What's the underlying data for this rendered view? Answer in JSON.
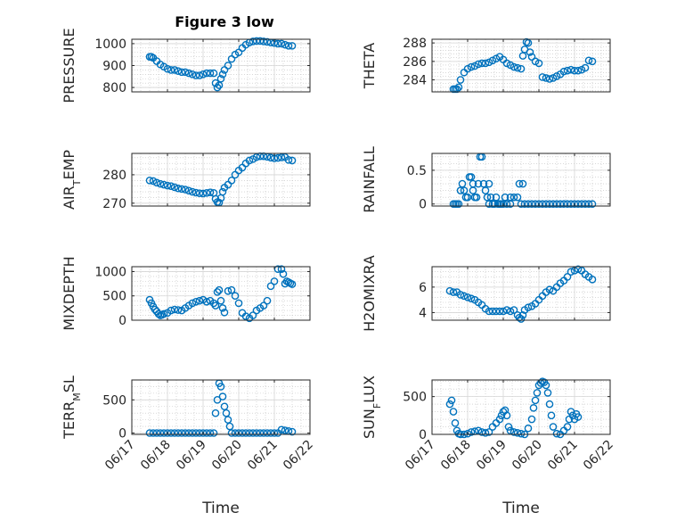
{
  "figure_title": "Figure 3 low",
  "colors": {
    "marker": "#0072BD",
    "axis": "#262626",
    "grid": "#C0C0C0",
    "background": "#ffffff"
  },
  "chart_data": [
    {
      "type": "scatter",
      "marker": "open-circle",
      "grid": true,
      "title": "Figure 3 low",
      "ylabel": "PRESSURE",
      "xlabel": "",
      "xlim": [
        0,
        5
      ],
      "ylim": [
        780,
        1020
      ],
      "yticks": [
        800,
        900,
        1000
      ],
      "xticks": [
        0,
        1,
        2,
        3,
        4,
        5
      ],
      "xtick_labels": [
        "06/17",
        "06/18",
        "06/19",
        "06/20",
        "06/21",
        "06/22"
      ],
      "show_xtick_labels": false,
      "x": [
        0.5,
        0.55,
        0.6,
        0.7,
        0.8,
        0.9,
        1.0,
        1.1,
        1.2,
        1.3,
        1.4,
        1.5,
        1.6,
        1.7,
        1.8,
        1.9,
        2.0,
        2.1,
        2.2,
        2.3,
        2.35,
        2.4,
        2.45,
        2.5,
        2.55,
        2.6,
        2.7,
        2.8,
        2.9,
        3.0,
        3.1,
        3.2,
        3.3,
        3.4,
        3.5,
        3.6,
        3.7,
        3.8,
        3.9,
        4.0,
        4.1,
        4.2,
        4.3,
        4.4,
        4.5
      ],
      "y": [
        940,
        940,
        935,
        920,
        905,
        895,
        885,
        880,
        880,
        875,
        870,
        870,
        865,
        860,
        855,
        855,
        860,
        865,
        865,
        865,
        820,
        800,
        810,
        840,
        860,
        880,
        900,
        930,
        950,
        960,
        980,
        995,
        1005,
        1010,
        1012,
        1012,
        1010,
        1008,
        1005,
        1003,
        1000,
        1000,
        995,
        990,
        990
      ]
    },
    {
      "type": "scatter",
      "marker": "open-circle",
      "grid": true,
      "ylabel": "THETA",
      "xlabel": "",
      "xlim": [
        0,
        5
      ],
      "ylim": [
        282.7,
        288.4
      ],
      "yticks": [
        284,
        286,
        288
      ],
      "xticks": [
        0,
        1,
        2,
        3,
        4,
        5
      ],
      "xtick_labels": [
        "06/17",
        "06/18",
        "06/19",
        "06/20",
        "06/21",
        "06/22"
      ],
      "show_xtick_labels": false,
      "x": [
        0.6,
        0.65,
        0.7,
        0.75,
        0.8,
        0.9,
        1.0,
        1.1,
        1.2,
        1.3,
        1.4,
        1.5,
        1.6,
        1.7,
        1.8,
        1.9,
        2.0,
        2.1,
        2.2,
        2.3,
        2.4,
        2.5,
        2.55,
        2.6,
        2.65,
        2.7,
        2.75,
        2.8,
        2.9,
        3.0,
        3.1,
        3.2,
        3.3,
        3.4,
        3.5,
        3.6,
        3.7,
        3.8,
        3.9,
        4.0,
        4.1,
        4.2,
        4.3,
        4.4,
        4.5
      ],
      "y": [
        283.0,
        283.0,
        283.0,
        283.2,
        284.0,
        284.8,
        285.2,
        285.4,
        285.5,
        285.7,
        285.8,
        285.8,
        285.9,
        286.1,
        286.3,
        286.5,
        286.2,
        285.8,
        285.6,
        285.4,
        285.3,
        285.2,
        286.6,
        287.3,
        288.1,
        288.0,
        287.0,
        286.5,
        286.0,
        285.8,
        284.3,
        284.2,
        284.1,
        284.2,
        284.4,
        284.6,
        284.9,
        285.0,
        285.1,
        285.0,
        285.0,
        285.1,
        285.3,
        286.1,
        286.0
      ]
    },
    {
      "type": "scatter",
      "marker": "open-circle",
      "grid": true,
      "ylabel": "AIR_TEMP",
      "xlabel": "",
      "xlim": [
        0,
        5
      ],
      "ylim": [
        269,
        287.5
      ],
      "yticks": [
        270,
        280
      ],
      "xticks": [
        0,
        1,
        2,
        3,
        4,
        5
      ],
      "xtick_labels": [
        "06/17",
        "06/18",
        "06/19",
        "06/20",
        "06/21",
        "06/22"
      ],
      "show_xtick_labels": false,
      "x": [
        0.5,
        0.6,
        0.7,
        0.8,
        0.9,
        1.0,
        1.1,
        1.2,
        1.3,
        1.4,
        1.5,
        1.6,
        1.7,
        1.8,
        1.9,
        2.0,
        2.1,
        2.2,
        2.3,
        2.35,
        2.4,
        2.45,
        2.5,
        2.55,
        2.6,
        2.7,
        2.8,
        2.9,
        3.0,
        3.1,
        3.2,
        3.3,
        3.4,
        3.5,
        3.6,
        3.7,
        3.8,
        3.9,
        4.0,
        4.1,
        4.2,
        4.3,
        4.4,
        4.5
      ],
      "y": [
        278.0,
        277.8,
        277.2,
        276.8,
        276.5,
        276.2,
        276.0,
        275.6,
        275.2,
        275.0,
        274.8,
        274.4,
        274.0,
        273.7,
        273.5,
        273.4,
        273.6,
        273.8,
        273.6,
        271.5,
        270.4,
        270.2,
        271.8,
        274.0,
        275.5,
        276.5,
        278.0,
        280.0,
        281.5,
        282.5,
        284.0,
        285.0,
        285.5,
        286.2,
        286.5,
        286.5,
        286.3,
        286.0,
        285.8,
        285.9,
        286.1,
        286.2,
        285.2,
        285.0
      ]
    },
    {
      "type": "scatter",
      "marker": "open-circle",
      "grid": true,
      "ylabel": "RAINFALL",
      "xlabel": "",
      "xlim": [
        0,
        5
      ],
      "ylim": [
        -0.03,
        0.75
      ],
      "yticks": [
        0,
        0.5
      ],
      "xticks": [
        0,
        1,
        2,
        3,
        4,
        5
      ],
      "xtick_labels": [
        "06/17",
        "06/18",
        "06/19",
        "06/20",
        "06/21",
        "06/22"
      ],
      "show_xtick_labels": false,
      "x": [
        0.6,
        0.65,
        0.7,
        0.75,
        0.8,
        0.85,
        0.9,
        0.95,
        1.0,
        1.05,
        1.1,
        1.15,
        1.2,
        1.25,
        1.3,
        1.35,
        1.4,
        1.45,
        1.5,
        1.55,
        1.6,
        1.65,
        1.7,
        1.75,
        1.8,
        1.85,
        1.9,
        1.95,
        2.0,
        2.05,
        2.1,
        2.2,
        2.3,
        2.4,
        2.5,
        2.6,
        2.7,
        2.8,
        2.9,
        3.0,
        3.1,
        3.2,
        3.3,
        3.4,
        3.5,
        3.6,
        3.7,
        3.8,
        3.9,
        4.0,
        4.1,
        4.2,
        4.3,
        4.4,
        4.5,
        1.9,
        2.2,
        2.45,
        2.55,
        1.15,
        1.6
      ],
      "y": [
        0,
        0,
        0,
        0,
        0.2,
        0.3,
        0.2,
        0.1,
        0.1,
        0.4,
        0.4,
        0.2,
        0.1,
        0.1,
        0.3,
        0.7,
        0.7,
        0.3,
        0.2,
        0.1,
        0,
        0.1,
        0,
        0,
        0.1,
        0,
        0,
        0,
        0,
        0.1,
        0,
        0.1,
        0.1,
        0.1,
        0,
        0,
        0,
        0,
        0,
        0,
        0,
        0,
        0,
        0,
        0,
        0,
        0,
        0,
        0,
        0,
        0,
        0,
        0,
        0,
        0,
        0,
        0,
        0.3,
        0.3,
        0.3,
        0.3
      ]
    },
    {
      "type": "scatter",
      "marker": "open-circle",
      "grid": true,
      "ylabel": "MIXDEPTH",
      "xlabel": "",
      "xlim": [
        0,
        5
      ],
      "ylim": [
        0,
        1100
      ],
      "yticks": [
        0,
        500,
        1000
      ],
      "xticks": [
        0,
        1,
        2,
        3,
        4,
        5
      ],
      "xtick_labels": [
        "06/17",
        "06/18",
        "06/19",
        "06/20",
        "06/21",
        "06/22"
      ],
      "show_xtick_labels": false,
      "x": [
        0.5,
        0.55,
        0.6,
        0.65,
        0.7,
        0.75,
        0.8,
        0.85,
        0.9,
        1.0,
        1.1,
        1.2,
        1.3,
        1.4,
        1.5,
        1.6,
        1.7,
        1.8,
        1.9,
        2.0,
        2.1,
        2.2,
        2.3,
        2.35,
        2.4,
        2.45,
        2.5,
        2.55,
        2.6,
        2.7,
        2.8,
        2.9,
        3.0,
        3.1,
        3.2,
        3.3,
        3.4,
        3.5,
        3.6,
        3.7,
        3.8,
        3.9,
        4.0,
        4.1,
        4.2,
        4.25,
        4.3,
        4.35,
        4.4,
        4.45,
        4.5
      ],
      "y": [
        420,
        350,
        280,
        220,
        180,
        130,
        100,
        110,
        130,
        150,
        200,
        220,
        210,
        200,
        250,
        300,
        350,
        380,
        400,
        420,
        380,
        400,
        350,
        300,
        580,
        620,
        400,
        250,
        160,
        600,
        620,
        500,
        350,
        150,
        80,
        40,
        100,
        200,
        250,
        300,
        400,
        700,
        800,
        1050,
        1050,
        950,
        750,
        800,
        780,
        760,
        740
      ]
    },
    {
      "type": "scatter",
      "marker": "open-circle",
      "grid": true,
      "ylabel": "H2OMIXRA",
      "xlabel": "",
      "xlim": [
        0,
        5
      ],
      "ylim": [
        3.4,
        7.6
      ],
      "yticks": [
        4,
        6
      ],
      "xticks": [
        0,
        1,
        2,
        3,
        4,
        5
      ],
      "xtick_labels": [
        "06/17",
        "06/18",
        "06/19",
        "06/20",
        "06/21",
        "06/22"
      ],
      "show_xtick_labels": false,
      "x": [
        0.5,
        0.6,
        0.7,
        0.8,
        0.9,
        1.0,
        1.1,
        1.2,
        1.3,
        1.4,
        1.5,
        1.6,
        1.7,
        1.8,
        1.9,
        2.0,
        2.1,
        2.2,
        2.3,
        2.4,
        2.45,
        2.5,
        2.55,
        2.6,
        2.7,
        2.8,
        2.9,
        3.0,
        3.1,
        3.2,
        3.3,
        3.4,
        3.5,
        3.6,
        3.7,
        3.8,
        3.9,
        4.0,
        4.1,
        4.2,
        4.3,
        4.4,
        4.5
      ],
      "y": [
        5.7,
        5.6,
        5.6,
        5.4,
        5.3,
        5.2,
        5.1,
        5.0,
        4.8,
        4.6,
        4.3,
        4.1,
        4.1,
        4.1,
        4.1,
        4.1,
        4.2,
        4.1,
        4.2,
        3.8,
        3.6,
        3.5,
        3.8,
        4.2,
        4.4,
        4.5,
        4.7,
        5.0,
        5.3,
        5.6,
        5.8,
        5.7,
        6.0,
        6.3,
        6.5,
        6.8,
        7.2,
        7.3,
        7.4,
        7.3,
        7.0,
        6.8,
        6.6
      ]
    },
    {
      "type": "scatter",
      "marker": "open-circle",
      "grid": true,
      "ylabel": "TERR_MSL",
      "xlabel": "Time",
      "xlim": [
        0,
        5
      ],
      "ylim": [
        -20,
        800
      ],
      "yticks": [
        0,
        500
      ],
      "xticks": [
        0,
        1,
        2,
        3,
        4,
        5
      ],
      "xtick_labels": [
        "06/17",
        "06/18",
        "06/19",
        "06/20",
        "06/21",
        "06/22"
      ],
      "show_xtick_labels": true,
      "x": [
        0.5,
        0.6,
        0.7,
        0.8,
        0.9,
        1.0,
        1.1,
        1.2,
        1.3,
        1.4,
        1.5,
        1.6,
        1.7,
        1.8,
        1.9,
        2.0,
        2.1,
        2.2,
        2.3,
        2.35,
        2.4,
        2.45,
        2.5,
        2.55,
        2.6,
        2.65,
        2.7,
        2.75,
        2.8,
        2.9,
        3.0,
        3.1,
        3.2,
        3.3,
        3.4,
        3.5,
        3.6,
        3.7,
        3.8,
        3.9,
        4.0,
        4.1,
        4.2,
        4.3,
        4.4,
        4.5
      ],
      "y": [
        0,
        0,
        0,
        0,
        0,
        0,
        0,
        0,
        0,
        0,
        0,
        0,
        0,
        0,
        0,
        0,
        0,
        0,
        0,
        300,
        500,
        750,
        700,
        550,
        400,
        300,
        200,
        100,
        0,
        0,
        0,
        0,
        0,
        0,
        0,
        0,
        0,
        0,
        0,
        0,
        0,
        0,
        50,
        40,
        30,
        20
      ]
    },
    {
      "type": "scatter",
      "marker": "open-circle",
      "grid": true,
      "ylabel": "SUN_FLUX",
      "xlabel": "Time",
      "xlim": [
        0,
        5
      ],
      "ylim": [
        0,
        720
      ],
      "yticks": [
        0,
        500
      ],
      "xticks": [
        0,
        1,
        2,
        3,
        4,
        5
      ],
      "xtick_labels": [
        "06/17",
        "06/18",
        "06/19",
        "06/20",
        "06/21",
        "06/22"
      ],
      "show_xtick_labels": true,
      "x": [
        0.5,
        0.55,
        0.6,
        0.65,
        0.7,
        0.75,
        0.8,
        0.9,
        1.0,
        1.1,
        1.2,
        1.3,
        1.4,
        1.5,
        1.6,
        1.7,
        1.8,
        1.9,
        1.95,
        2.0,
        2.05,
        2.1,
        2.15,
        2.2,
        2.3,
        2.4,
        2.5,
        2.6,
        2.7,
        2.8,
        2.85,
        2.9,
        2.95,
        3.0,
        3.05,
        3.1,
        3.15,
        3.2,
        3.25,
        3.3,
        3.35,
        3.4,
        3.5,
        3.6,
        3.7,
        3.8,
        3.85,
        3.9,
        3.95,
        4.0,
        4.05,
        4.1
      ],
      "y": [
        400,
        450,
        300,
        150,
        50,
        10,
        0,
        0,
        10,
        30,
        40,
        50,
        30,
        20,
        30,
        100,
        150,
        200,
        250,
        300,
        320,
        250,
        100,
        50,
        30,
        20,
        10,
        0,
        80,
        200,
        350,
        450,
        550,
        650,
        680,
        700,
        690,
        650,
        550,
        400,
        250,
        100,
        10,
        0,
        50,
        100,
        200,
        300,
        250,
        200,
        270,
        230
      ]
    }
  ]
}
